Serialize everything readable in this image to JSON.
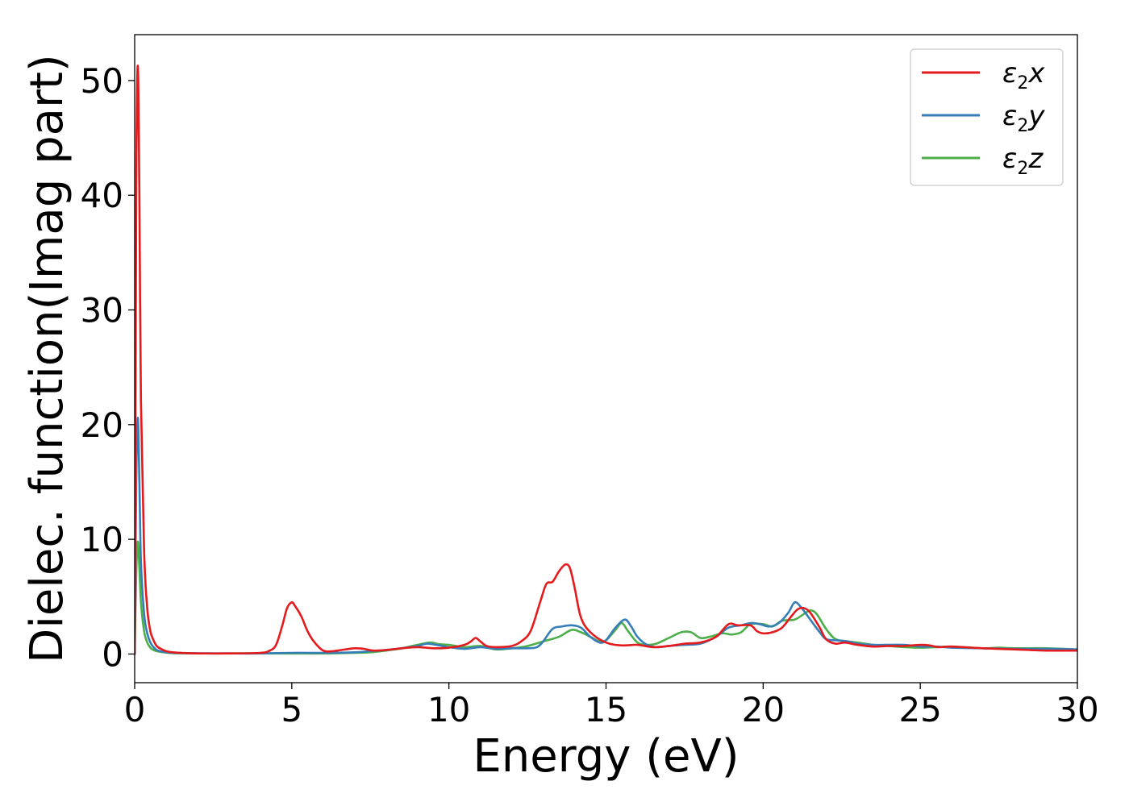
{
  "chart_data": {
    "type": "line",
    "xlabel": "Energy (eV)",
    "ylabel": "Dielec. function(Imag part)",
    "xlim": [
      0,
      30
    ],
    "ylim": [
      -2.5,
      54
    ],
    "xticks": [
      0,
      5,
      10,
      15,
      20,
      25,
      30
    ],
    "yticks": [
      0,
      10,
      20,
      30,
      40,
      50
    ],
    "grid": false,
    "legend_position": "top-right",
    "series": [
      {
        "name": "ε2x",
        "symbol": "ε",
        "subscript": "2",
        "axis": "x",
        "color": "#e41a1c",
        "x": [
          0.0,
          0.05,
          0.1,
          0.15,
          0.2,
          0.3,
          0.4,
          0.5,
          0.6,
          0.7,
          0.8,
          1.0,
          1.2,
          1.5,
          2.0,
          3.0,
          4.0,
          4.3,
          4.5,
          4.7,
          4.85,
          5.0,
          5.1,
          5.3,
          5.5,
          5.7,
          6.0,
          6.3,
          6.7,
          7.0,
          7.3,
          7.6,
          8.0,
          8.5,
          9.0,
          9.5,
          10.0,
          10.5,
          10.7,
          10.85,
          11.0,
          11.2,
          11.5,
          12.0,
          12.3,
          12.6,
          12.9,
          13.1,
          13.3,
          13.5,
          13.7,
          13.85,
          14.0,
          14.2,
          14.5,
          15.0,
          15.5,
          16.0,
          16.5,
          17.0,
          17.5,
          18.0,
          18.5,
          18.9,
          19.2,
          19.6,
          19.8,
          20.0,
          20.3,
          20.6,
          20.9,
          21.1,
          21.3,
          21.5,
          21.8,
          22.0,
          22.3,
          22.6,
          23.0,
          23.5,
          24.0,
          24.5,
          25.0,
          25.3,
          25.6,
          26.0,
          27.0,
          28.0,
          29.0,
          30.0
        ],
        "y": [
          0.0,
          40.0,
          51.3,
          40.0,
          22.0,
          9.0,
          4.0,
          2.0,
          1.2,
          0.7,
          0.5,
          0.25,
          0.15,
          0.1,
          0.05,
          0.05,
          0.1,
          0.3,
          0.8,
          2.5,
          4.0,
          4.5,
          4.2,
          3.3,
          2.0,
          1.1,
          0.3,
          0.25,
          0.4,
          0.5,
          0.45,
          0.3,
          0.35,
          0.5,
          0.6,
          0.5,
          0.55,
          0.8,
          1.1,
          1.4,
          1.1,
          0.7,
          0.6,
          0.7,
          1.1,
          2.0,
          4.5,
          6.1,
          6.3,
          7.2,
          7.8,
          7.5,
          5.8,
          3.2,
          1.9,
          1.0,
          0.75,
          0.8,
          0.6,
          0.7,
          0.9,
          1.0,
          1.5,
          2.6,
          2.5,
          2.5,
          2.0,
          1.8,
          1.9,
          2.3,
          3.3,
          3.9,
          4.0,
          3.6,
          2.3,
          1.3,
          0.9,
          1.0,
          0.8,
          0.65,
          0.7,
          0.7,
          0.8,
          0.75,
          0.6,
          0.65,
          0.5,
          0.4,
          0.3,
          0.3
        ]
      },
      {
        "name": "ε2y",
        "symbol": "ε",
        "subscript": "2",
        "axis": "y",
        "color": "#377eb8",
        "x": [
          0.0,
          0.05,
          0.1,
          0.15,
          0.2,
          0.3,
          0.4,
          0.5,
          0.6,
          0.7,
          0.8,
          1.0,
          1.2,
          1.5,
          2.0,
          3.0,
          4.0,
          5.0,
          6.0,
          7.0,
          7.5,
          8.0,
          8.5,
          9.0,
          9.3,
          9.6,
          10.0,
          10.5,
          11.0,
          11.5,
          12.0,
          12.5,
          12.8,
          13.0,
          13.3,
          13.6,
          13.9,
          14.2,
          14.5,
          14.8,
          15.0,
          15.3,
          15.6,
          15.8,
          16.0,
          16.3,
          16.6,
          17.0,
          17.5,
          18.0,
          18.5,
          18.9,
          19.3,
          19.6,
          19.9,
          20.2,
          20.5,
          20.8,
          21.0,
          21.2,
          21.5,
          21.8,
          22.0,
          22.3,
          22.7,
          23.0,
          23.5,
          24.0,
          24.5,
          25.0,
          25.5,
          26.0,
          27.0,
          28.0,
          29.0,
          30.0
        ],
        "y": [
          0.0,
          15.0,
          20.6,
          15.0,
          8.0,
          3.5,
          1.8,
          1.0,
          0.6,
          0.35,
          0.25,
          0.15,
          0.1,
          0.08,
          0.06,
          0.05,
          0.05,
          0.1,
          0.1,
          0.15,
          0.25,
          0.35,
          0.5,
          0.7,
          0.9,
          0.8,
          0.6,
          0.45,
          0.6,
          0.45,
          0.5,
          0.5,
          0.6,
          1.1,
          2.2,
          2.4,
          2.5,
          2.3,
          1.5,
          1.0,
          1.2,
          2.3,
          3.0,
          2.4,
          1.5,
          0.8,
          0.6,
          0.7,
          0.8,
          0.9,
          1.5,
          2.3,
          2.5,
          2.7,
          2.6,
          2.4,
          2.7,
          3.6,
          4.5,
          4.1,
          3.0,
          1.9,
          1.3,
          1.2,
          1.1,
          0.9,
          0.8,
          0.8,
          0.8,
          0.65,
          0.65,
          0.55,
          0.5,
          0.45,
          0.45,
          0.4
        ]
      },
      {
        "name": "ε2z",
        "symbol": "ε",
        "subscript": "2",
        "axis": "z",
        "color": "#4daf4a",
        "x": [
          0.0,
          0.05,
          0.1,
          0.15,
          0.2,
          0.3,
          0.4,
          0.5,
          0.6,
          0.7,
          0.8,
          1.0,
          1.2,
          1.5,
          2.0,
          3.0,
          4.0,
          5.0,
          6.0,
          7.0,
          7.5,
          8.0,
          8.5,
          9.0,
          9.4,
          9.7,
          10.0,
          10.5,
          11.0,
          11.5,
          12.0,
          12.5,
          13.0,
          13.5,
          13.9,
          14.2,
          14.5,
          14.8,
          15.0,
          15.3,
          15.5,
          15.7,
          16.0,
          16.3,
          16.6,
          17.0,
          17.4,
          17.7,
          18.0,
          18.3,
          18.7,
          19.0,
          19.3,
          19.6,
          20.0,
          20.3,
          20.6,
          21.0,
          21.3,
          21.5,
          21.7,
          22.0,
          22.3,
          22.7,
          23.0,
          23.5,
          24.0,
          24.5,
          25.0,
          25.5,
          26.0,
          27.0,
          27.5,
          28.0,
          29.0,
          30.0
        ],
        "y": [
          0.0,
          7.0,
          9.8,
          7.5,
          4.5,
          2.0,
          1.0,
          0.55,
          0.35,
          0.25,
          0.2,
          0.12,
          0.08,
          0.06,
          0.05,
          0.05,
          0.05,
          0.05,
          0.05,
          0.1,
          0.15,
          0.3,
          0.5,
          0.8,
          1.0,
          0.85,
          0.8,
          0.6,
          0.7,
          0.4,
          0.5,
          0.7,
          1.1,
          1.5,
          2.1,
          1.9,
          1.5,
          1.1,
          1.2,
          2.1,
          2.7,
          2.0,
          1.0,
          0.8,
          0.9,
          1.4,
          1.9,
          1.9,
          1.4,
          1.5,
          1.8,
          1.7,
          1.9,
          2.6,
          2.6,
          2.4,
          2.9,
          3.0,
          3.5,
          3.8,
          3.5,
          2.2,
          1.3,
          1.1,
          1.0,
          0.8,
          0.7,
          0.6,
          0.55,
          0.6,
          0.65,
          0.5,
          0.55,
          0.5,
          0.5,
          0.4
        ]
      }
    ]
  }
}
